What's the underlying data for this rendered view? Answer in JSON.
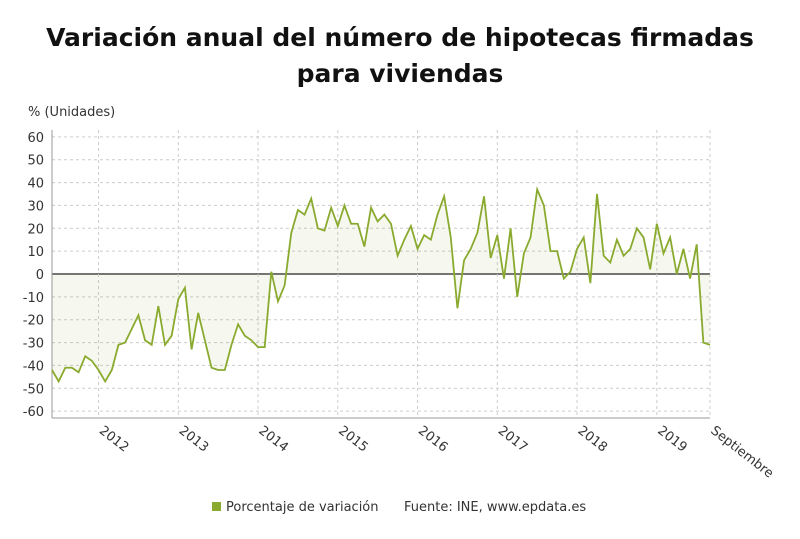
{
  "chart_data": {
    "type": "line",
    "title": "Variación anual del número de hipotecas firmadas para viviendas",
    "y_label": "% (Unidades)",
    "source": "Fuente: INE, www.epdata.es",
    "categories": [
      null,
      null,
      null,
      null,
      null,
      null,
      null,
      "2012",
      null,
      null,
      null,
      null,
      null,
      null,
      null,
      null,
      null,
      null,
      null,
      "2013",
      null,
      null,
      null,
      null,
      null,
      null,
      null,
      null,
      null,
      null,
      null,
      "2014",
      null,
      null,
      null,
      null,
      null,
      null,
      null,
      null,
      null,
      null,
      null,
      "2015",
      null,
      null,
      null,
      null,
      null,
      null,
      null,
      null,
      null,
      null,
      null,
      "2016",
      null,
      null,
      null,
      null,
      null,
      null,
      null,
      null,
      null,
      null,
      null,
      "2017",
      null,
      null,
      null,
      null,
      null,
      null,
      null,
      null,
      null,
      null,
      null,
      "2018",
      null,
      null,
      null,
      null,
      null,
      null,
      null,
      null,
      null,
      null,
      null,
      "2019",
      null,
      null,
      null,
      null,
      null,
      null,
      null,
      "Septiembre"
    ],
    "series": [
      {
        "name": "Porcentaje de variación",
        "color": "#8aaa2f",
        "values": [
          -42,
          -47,
          -41,
          -41,
          -43,
          -36,
          -38,
          -42,
          -47,
          -42,
          -31,
          -30,
          -24,
          -18,
          -29,
          -31,
          -14,
          -31,
          -27,
          -11,
          -6,
          -33,
          -17,
          -29,
          -41,
          -42,
          -42,
          -31,
          -22,
          -27,
          -29,
          -32,
          -32,
          1,
          -12,
          -5,
          18,
          28,
          26,
          33,
          20,
          19,
          29,
          21,
          30,
          22,
          22,
          12,
          29,
          23,
          26,
          22,
          8,
          15,
          21,
          11,
          17,
          15,
          26,
          34,
          16,
          -15,
          6,
          11,
          18,
          34,
          7,
          17,
          -2,
          20,
          -10,
          9,
          16,
          37,
          30,
          10,
          10,
          -2,
          1,
          11,
          16,
          -4,
          35,
          8,
          5,
          15,
          8,
          11,
          20,
          16,
          2,
          22,
          9,
          16,
          0,
          11,
          -2,
          13,
          -30,
          -31
        ]
      }
    ],
    "ylim": [
      -63,
      63
    ],
    "yticks": [
      -60,
      -50,
      -40,
      -30,
      -20,
      -10,
      0,
      10,
      20,
      30,
      40,
      50,
      60
    ],
    "grid": true,
    "legend": "bottom"
  }
}
